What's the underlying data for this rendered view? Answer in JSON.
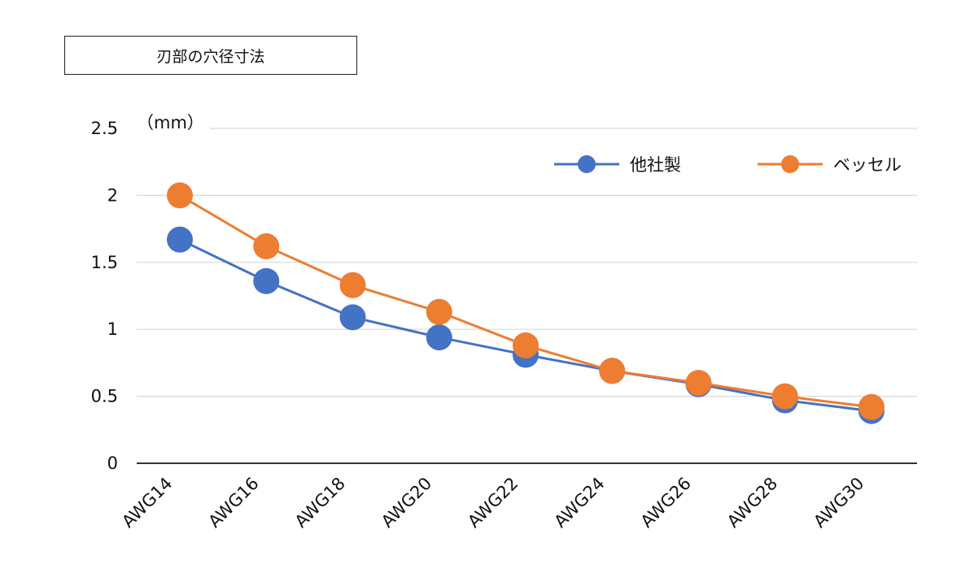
{
  "chart_data": {
    "type": "line",
    "title": "刃部の穴径寸法",
    "ylabel": "（mm）",
    "categories": [
      "AWG14",
      "AWG16",
      "AWG18",
      "AWG20",
      "AWG22",
      "AWG24",
      "AWG26",
      "AWG28",
      "AWG30"
    ],
    "yticks": [
      "0",
      "0.5",
      "1",
      "1.5",
      "2",
      "2.5"
    ],
    "ylim": [
      0,
      2.5
    ],
    "grid": true,
    "legend_position": "top-right",
    "series": [
      {
        "name": "他社製",
        "color": "#4472C4",
        "values": [
          1.67,
          1.36,
          1.09,
          0.94,
          0.81,
          0.69,
          0.59,
          0.47,
          0.39
        ]
      },
      {
        "name": "ベッセル",
        "color": "#ED7D31",
        "values": [
          2.0,
          1.62,
          1.33,
          1.13,
          0.88,
          0.69,
          0.6,
          0.5,
          0.42
        ]
      }
    ]
  }
}
